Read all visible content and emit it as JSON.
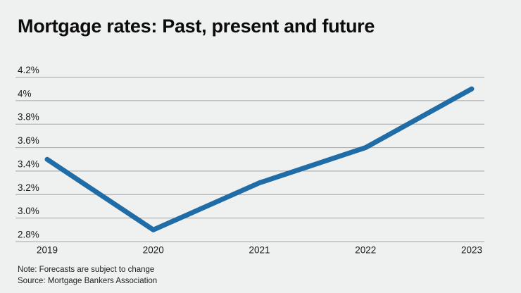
{
  "page": {
    "background": "#eff1f0"
  },
  "chart_data": {
    "type": "line",
    "title": "Mortgage rates: Past, present and future",
    "x": [
      2019,
      2020,
      2021,
      2022,
      2023
    ],
    "xtick_labels": [
      "2019",
      "2020",
      "2021",
      "2022",
      "2023"
    ],
    "series": [
      {
        "name": "mortgage-rate",
        "color": "#1f6ca6",
        "values": [
          3.5,
          2.9,
          3.3,
          3.6,
          4.1
        ]
      }
    ],
    "ylim": [
      2.8,
      4.2
    ],
    "yticks": [
      {
        "value": 4.2,
        "label": "4.2%"
      },
      {
        "value": 4.0,
        "label": "4%"
      },
      {
        "value": 3.8,
        "label": "3.8%"
      },
      {
        "value": 3.6,
        "label": "3.6%"
      },
      {
        "value": 3.4,
        "label": "3.4%"
      },
      {
        "value": 3.2,
        "label": "3.2%"
      },
      {
        "value": 3.0,
        "label": "3.0%"
      },
      {
        "value": 2.8,
        "label": "2.8%"
      }
    ],
    "grid": true,
    "legend": false,
    "gridline_color": "#a3a3a3",
    "axis_text_color": "#1a1a1a",
    "line_width": 7
  },
  "footer": {
    "note": "Note: Forecasts are subject to change",
    "source": "Source: Mortgage Bankers Association"
  }
}
